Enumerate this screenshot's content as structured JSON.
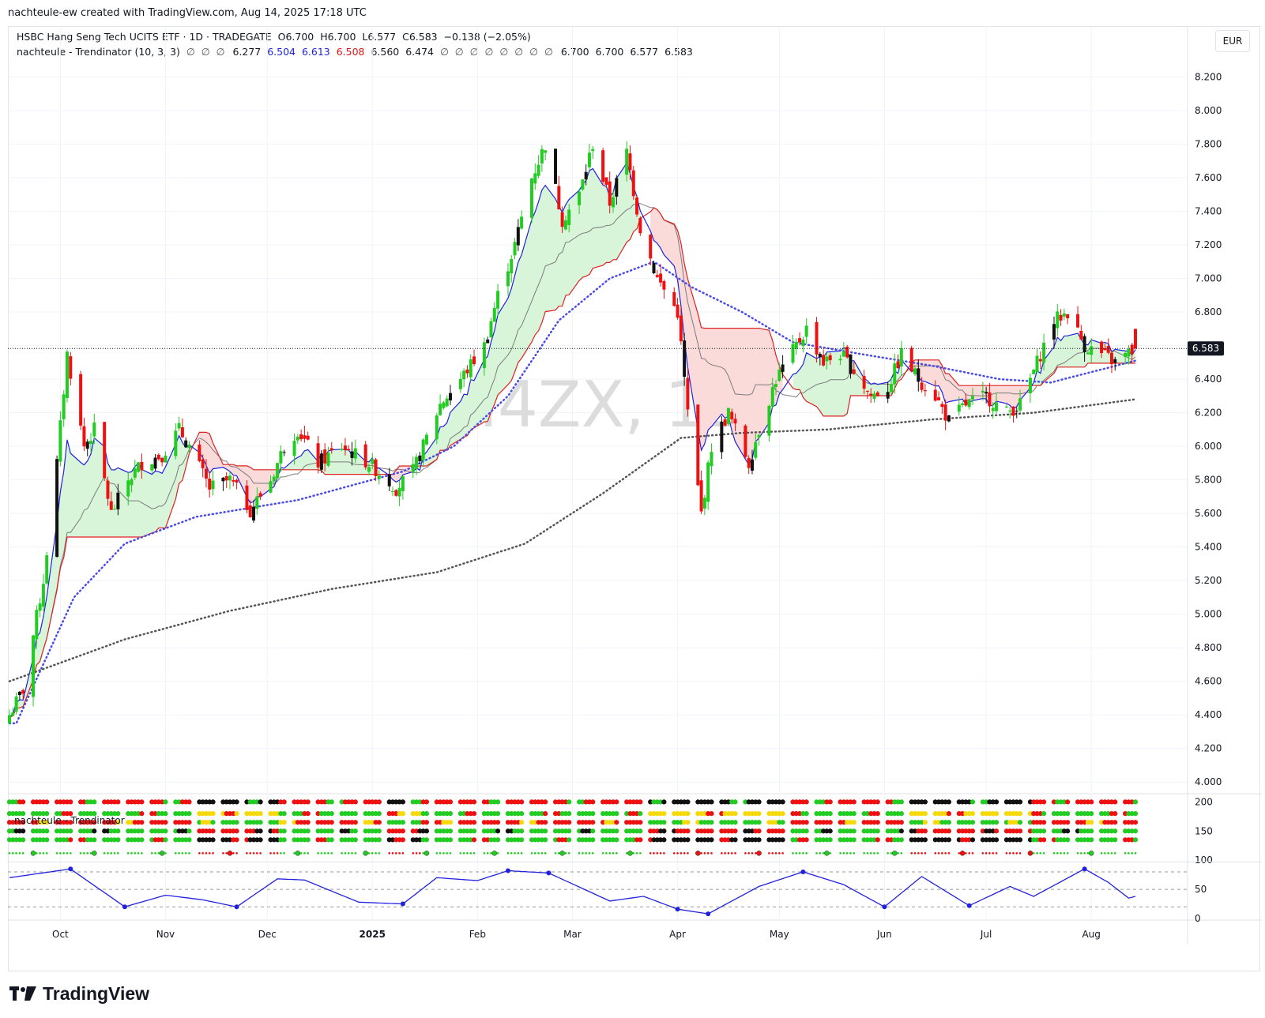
{
  "attribution": "nachteule-ew created with TradingView.com, Aug 14, 2025 17:18 UTC",
  "legend": {
    "main": "HSBC Hang Seng Tech UCITS ETF · 1D · TRADEGATE",
    "o_label": "O",
    "o": "6.700",
    "h_label": "H",
    "h": "6.700",
    "l_label": "L",
    "l": "6.577",
    "c_label": "C",
    "c": "6.583",
    "change": "−0.138 (−2.05%)",
    "indicator": "nachteule - Trendinator (10, 3, 3)",
    "indicator_dots_a": "∅ ∅ ∅",
    "v1": "6.277",
    "v2": "6.504",
    "v3": "6.613",
    "v4": "6.508",
    "v5": "6.560",
    "v6": "6.474",
    "indicator_dots_b": "∅ ∅ ∅ ∅ ∅ ∅ ∅ ∅",
    "v7": "6.700",
    "v8": "6.700",
    "v9": "6.577",
    "v10": "6.583"
  },
  "currency_button": "EUR",
  "watermark": "I4ZX, 1D",
  "last_price": "6.583",
  "oscillator_title": "nachteule - Trendinator",
  "brand": "TradingView",
  "colors": {
    "up": "#22cc22",
    "down": "#ee1111",
    "neutral": "#111111",
    "blue": "#1c22dd",
    "red": "#dd2222",
    "gray": "#7b7b7b",
    "cloud_up": "#d9f5d9",
    "cloud_down": "#fbdada"
  },
  "chart_data": [
    {
      "type": "candlestick",
      "title": "",
      "x_ticks": [
        "Oct",
        "Nov",
        "Dec",
        "2025",
        "Feb",
        "Mar",
        "Apr",
        "May",
        "Jun",
        "Jul",
        "Aug"
      ],
      "y_ticks": [
        "4.000",
        "4.200",
        "4.400",
        "4.600",
        "4.800",
        "5.000",
        "5.200",
        "5.400",
        "5.600",
        "5.800",
        "6.000",
        "6.200",
        "6.400",
        "6.600",
        "6.800",
        "7.000",
        "7.200",
        "7.400",
        "7.600",
        "7.800",
        "8.000",
        "8.200"
      ],
      "ylim": [
        3.94,
        8.32
      ],
      "grid": true,
      "series": [
        {
          "name": "close",
          "anchors": [
            [
              "2024-09-16",
              4.4
            ],
            [
              "2024-09-20",
              4.55
            ],
            [
              "2024-09-26",
              5.2
            ],
            [
              "2024-09-30",
              5.9
            ],
            [
              "2024-10-03",
              6.55
            ],
            [
              "2024-10-08",
              6.0
            ],
            [
              "2024-10-11",
              6.1
            ],
            [
              "2024-10-16",
              5.6
            ],
            [
              "2024-10-21",
              5.8
            ],
            [
              "2024-10-25",
              5.9
            ],
            [
              "2024-10-31",
              5.95
            ],
            [
              "2024-11-05",
              6.1
            ],
            [
              "2024-11-08",
              6.0
            ],
            [
              "2024-11-14",
              5.75
            ],
            [
              "2024-11-20",
              5.8
            ],
            [
              "2024-11-26",
              5.62
            ],
            [
              "2024-12-02",
              5.8
            ],
            [
              "2024-12-06",
              6.0
            ],
            [
              "2024-12-10",
              6.1
            ],
            [
              "2024-12-16",
              5.9
            ],
            [
              "2024-12-23",
              6.0
            ],
            [
              "2024-12-31",
              5.9
            ],
            [
              "2025-01-08",
              5.75
            ],
            [
              "2025-01-13",
              5.85
            ],
            [
              "2025-01-17",
              6.05
            ],
            [
              "2025-01-21",
              6.25
            ],
            [
              "2025-01-27",
              6.4
            ],
            [
              "2025-02-03",
              6.6
            ],
            [
              "2025-02-07",
              6.9
            ],
            [
              "2025-02-12",
              7.2
            ],
            [
              "2025-02-17",
              7.6
            ],
            [
              "2025-02-21",
              7.8
            ],
            [
              "2025-02-26",
              7.35
            ],
            [
              "2025-03-03",
              7.5
            ],
            [
              "2025-03-07",
              7.8
            ],
            [
              "2025-03-12",
              7.45
            ],
            [
              "2025-03-17",
              7.75
            ],
            [
              "2025-03-21",
              7.3
            ],
            [
              "2025-03-26",
              7.0
            ],
            [
              "2025-04-01",
              6.8
            ],
            [
              "2025-04-04",
              6.2
            ],
            [
              "2025-04-08",
              5.6
            ],
            [
              "2025-04-11",
              6.0
            ],
            [
              "2025-04-16",
              6.2
            ],
            [
              "2025-04-22",
              5.9
            ],
            [
              "2025-04-25",
              6.1
            ],
            [
              "2025-04-30",
              6.4
            ],
            [
              "2025-05-06",
              6.6
            ],
            [
              "2025-05-09",
              6.7
            ],
            [
              "2025-05-14",
              6.5
            ],
            [
              "2025-05-19",
              6.55
            ],
            [
              "2025-05-23",
              6.45
            ],
            [
              "2025-05-28",
              6.3
            ],
            [
              "2025-06-02",
              6.35
            ],
            [
              "2025-06-06",
              6.55
            ],
            [
              "2025-06-11",
              6.4
            ],
            [
              "2025-06-16",
              6.3
            ],
            [
              "2025-06-20",
              6.15
            ],
            [
              "2025-06-25",
              6.25
            ],
            [
              "2025-07-01",
              6.3
            ],
            [
              "2025-07-07",
              6.2
            ],
            [
              "2025-07-11",
              6.25
            ],
            [
              "2025-07-16",
              6.5
            ],
            [
              "2025-07-21",
              6.75
            ],
            [
              "2025-07-25",
              6.8
            ],
            [
              "2025-07-30",
              6.6
            ],
            [
              "2025-08-04",
              6.55
            ],
            [
              "2025-08-08",
              6.5
            ],
            [
              "2025-08-14",
              6.583
            ]
          ]
        },
        {
          "name": "",
          "role": "ma-slow",
          "anchors": [
            [
              "2024-09-16",
              4.6
            ],
            [
              "2024-10-20",
              4.85
            ],
            [
              "2024-11-20",
              5.02
            ],
            [
              "2024-12-20",
              5.15
            ],
            [
              "2025-01-20",
              5.25
            ],
            [
              "2025-02-15",
              5.42
            ],
            [
              "2025-03-10",
              5.72
            ],
            [
              "2025-04-02",
              6.05
            ],
            [
              "2025-04-20",
              6.08
            ],
            [
              "2025-05-15",
              6.1
            ],
            [
              "2025-06-15",
              6.16
            ],
            [
              "2025-07-15",
              6.2
            ],
            [
              "2025-08-14",
              6.28
            ]
          ]
        },
        {
          "name": "",
          "role": "ma-fast",
          "anchors": [
            [
              "2024-09-18",
              4.35
            ],
            [
              "2024-10-05",
              5.1
            ],
            [
              "2024-10-20",
              5.42
            ],
            [
              "2024-11-10",
              5.58
            ],
            [
              "2024-12-10",
              5.68
            ],
            [
              "2025-01-10",
              5.85
            ],
            [
              "2025-01-25",
              6.0
            ],
            [
              "2025-02-10",
              6.3
            ],
            [
              "2025-02-25",
              6.75
            ],
            [
              "2025-03-12",
              7.0
            ],
            [
              "2025-03-25",
              7.1
            ],
            [
              "2025-04-05",
              6.95
            ],
            [
              "2025-04-20",
              6.8
            ],
            [
              "2025-05-05",
              6.62
            ],
            [
              "2025-05-25",
              6.55
            ],
            [
              "2025-06-15",
              6.48
            ],
            [
              "2025-07-05",
              6.4
            ],
            [
              "2025-07-20",
              6.38
            ],
            [
              "2025-08-14",
              6.51
            ]
          ]
        }
      ]
    },
    {
      "type": "line",
      "title": "",
      "y_ticks": [
        "0",
        "50",
        "100",
        "150",
        "200"
      ],
      "ylim": [
        0,
        210
      ],
      "series": [
        {
          "name": "",
          "anchors": [
            [
              "2024-09-16",
              70
            ],
            [
              "2024-10-04",
              85
            ],
            [
              "2024-10-20",
              20
            ],
            [
              "2024-11-01",
              40
            ],
            [
              "2024-11-12",
              32
            ],
            [
              "2024-11-22",
              20
            ],
            [
              "2024-12-04",
              68
            ],
            [
              "2024-12-12",
              66
            ],
            [
              "2024-12-28",
              28
            ],
            [
              "2025-01-10",
              25
            ],
            [
              "2025-01-20",
              70
            ],
            [
              "2025-02-01",
              65
            ],
            [
              "2025-02-10",
              82
            ],
            [
              "2025-02-22",
              78
            ],
            [
              "2025-03-12",
              30
            ],
            [
              "2025-03-22",
              38
            ],
            [
              "2025-04-01",
              16
            ],
            [
              "2025-04-10",
              8
            ],
            [
              "2025-04-25",
              55
            ],
            [
              "2025-05-08",
              80
            ],
            [
              "2025-05-20",
              58
            ],
            [
              "2025-06-01",
              20
            ],
            [
              "2025-06-12",
              72
            ],
            [
              "2025-06-26",
              22
            ],
            [
              "2025-07-08",
              55
            ],
            [
              "2025-07-15",
              38
            ],
            [
              "2025-07-30",
              85
            ],
            [
              "2025-08-06",
              62
            ],
            [
              "2025-08-12",
              35
            ],
            [
              "2025-08-14",
              38
            ]
          ]
        }
      ]
    }
  ]
}
